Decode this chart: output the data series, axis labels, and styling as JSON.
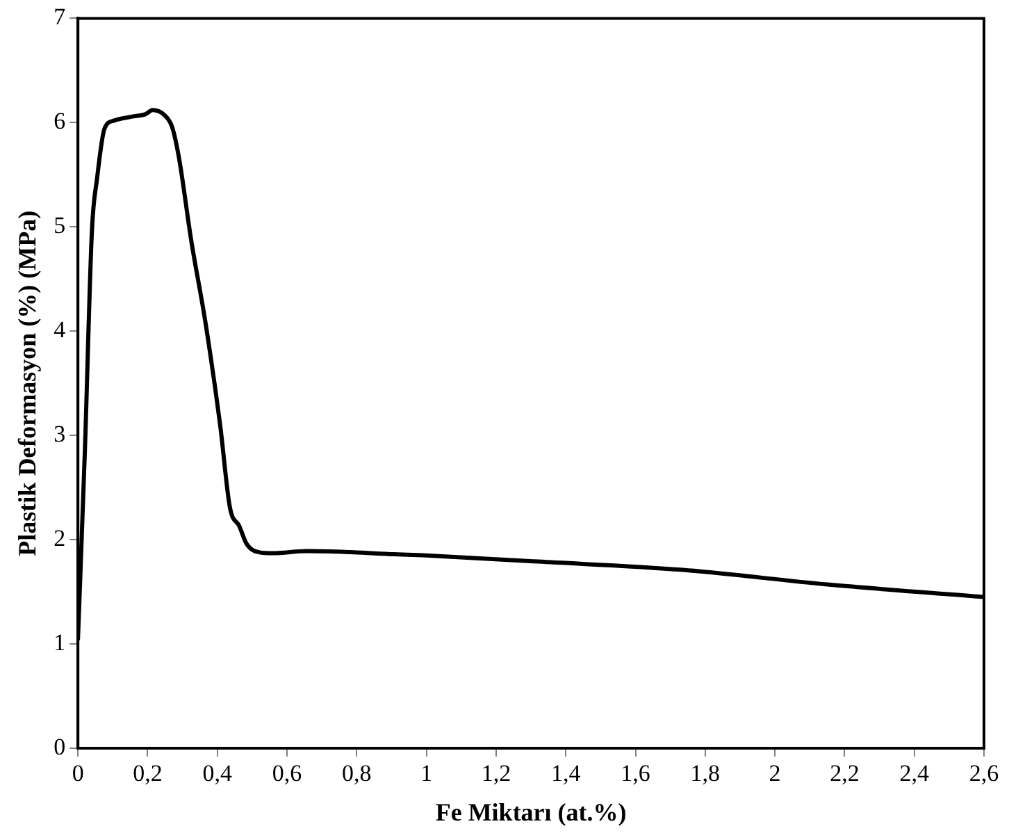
{
  "chart_data": {
    "type": "line",
    "xlabel": "Fe Miktarı (at.%)",
    "ylabel": "Plastik Deformasyon (%) (MPa)",
    "series": [
      {
        "color": "#000000",
        "x": [
          0,
          0.02,
          0.04,
          0.055,
          0.076,
          0.104,
          0.159,
          0.193,
          0.214,
          0.249,
          0.27,
          0.29,
          0.325,
          0.366,
          0.408,
          0.436,
          0.463,
          0.484,
          0.519,
          0.56,
          0.657,
          0.78,
          0.906,
          0.99,
          1.32,
          1.736,
          2.151,
          2.6
        ],
        "values": [
          1.05,
          2.87,
          4.96,
          5.47,
          5.94,
          6.02,
          6.06,
          6.08,
          6.12,
          6.07,
          5.96,
          5.66,
          4.87,
          4.08,
          3.1,
          2.31,
          2.13,
          1.96,
          1.88,
          1.87,
          1.89,
          1.88,
          1.86,
          1.85,
          1.79,
          1.71,
          1.57,
          1.45
        ]
      }
    ],
    "xlim": [
      0,
      2.6
    ],
    "ylim": [
      0,
      7
    ],
    "xticks": [
      0,
      {
        "value": 0.2,
        "label": "0,2"
      },
      {
        "value": 0.4,
        "label": "0,4"
      },
      {
        "value": 0.6,
        "label": "0,6"
      },
      {
        "value": 0.8,
        "label": "0,8"
      },
      1,
      {
        "value": 1.2,
        "label": "1,2"
      },
      {
        "value": 1.4,
        "label": "1,4"
      },
      {
        "value": 1.6,
        "label": "1,6"
      },
      {
        "value": 1.8,
        "label": "1,8"
      },
      2,
      {
        "value": 2.2,
        "label": "2,2"
      },
      {
        "value": 2.4,
        "label": "2,4"
      },
      {
        "value": 2.6,
        "label": "2,6"
      }
    ],
    "yticks": [
      0,
      1,
      2,
      3,
      4,
      5,
      6,
      7
    ],
    "grid": false,
    "legend": false,
    "marker": "none",
    "line_style": "solid"
  }
}
